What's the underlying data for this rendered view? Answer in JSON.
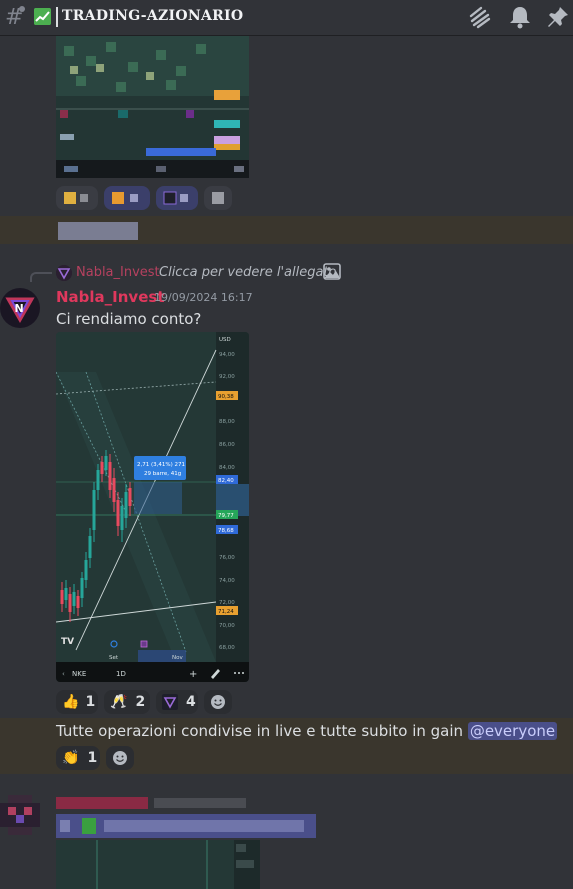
{
  "header": {
    "channel_name": "TRADING-AZIONARIO",
    "channel_emoji": "chart-emoji"
  },
  "reply": {
    "username": "Nabla_Invest",
    "text": "Clicca per vedere l'allegato"
  },
  "message": {
    "username": "Nabla_Invest",
    "timestamp": "19/09/2024 16:17",
    "text": "Ci rendiamo conto?",
    "reactions": [
      {
        "emoji": "thumbs-up",
        "glyph": "👍",
        "count": "1"
      },
      {
        "emoji": "champagne-clink",
        "glyph": "🥂",
        "count": "2"
      },
      {
        "emoji": "nabla-logo",
        "glyph": "▽",
        "count": "4"
      }
    ]
  },
  "followup": {
    "text": "Tutte operazioni condivise in live e tutte subito in gain",
    "mention": "@everyone",
    "reactions": [
      {
        "emoji": "clapping-hands",
        "glyph": "👏",
        "count": "1"
      }
    ]
  },
  "chart_image": {
    "currency": "USD",
    "y_ticks": [
      "94,00",
      "92,00",
      "90,38",
      "88,00",
      "86,00",
      "84,00",
      "82,40",
      "79,77",
      "78,68",
      "76,00",
      "74,00",
      "72,00",
      "71,24",
      "70,00",
      "68,00"
    ],
    "tooltip_line1": "2,71 (3,41%) 271",
    "tooltip_line2": "29 barre, 41g",
    "x_labels": [
      "Set",
      "Nov"
    ],
    "ticker": "NKE",
    "interval": "1D",
    "logo": "TV"
  },
  "colors": {
    "background": "#313338",
    "username": "#e0385d",
    "mention_bg": "#4a4f8a",
    "highlight": "#3a362d",
    "accent_bar": "#f0b232"
  }
}
